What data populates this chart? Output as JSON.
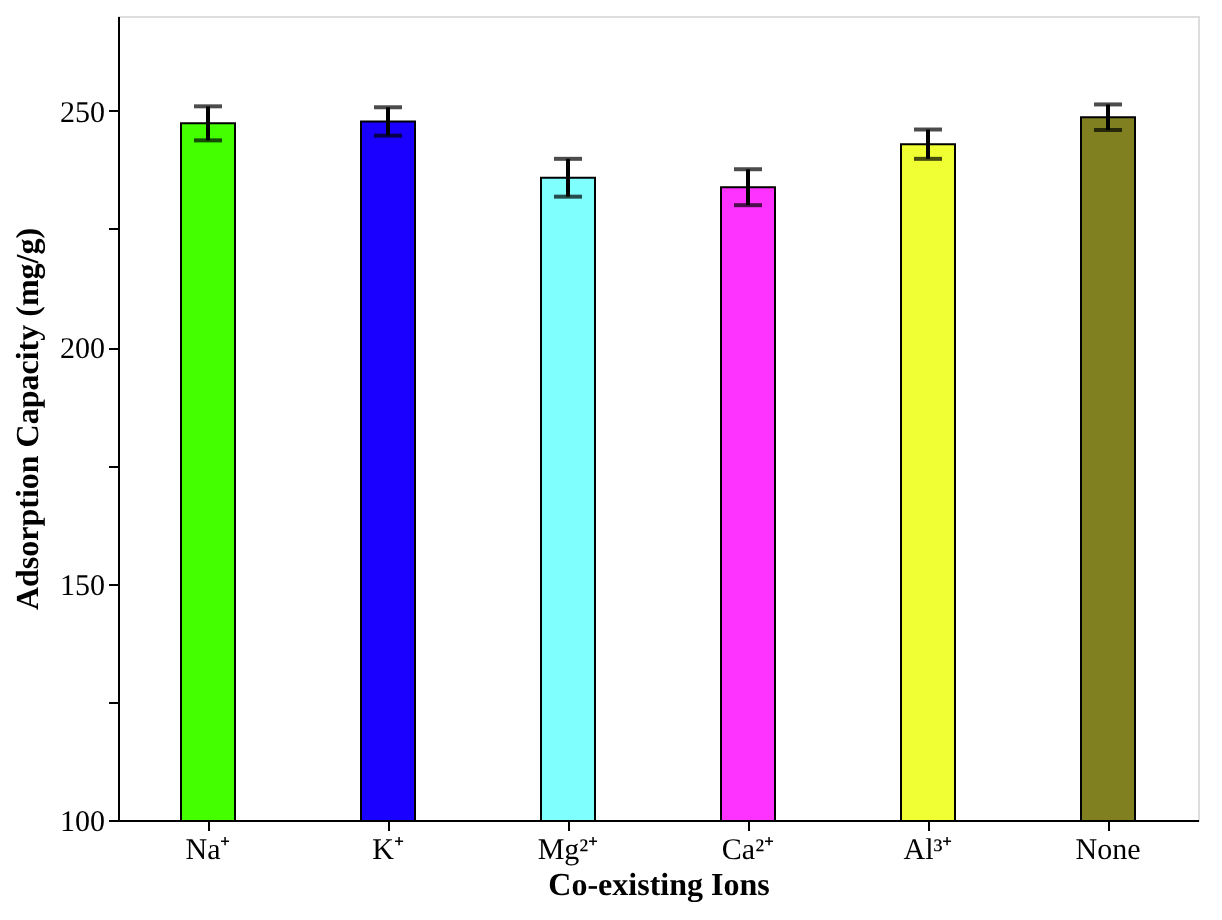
{
  "chart_data": {
    "type": "bar",
    "xlabel": "Co-existing Ions",
    "ylabel": "Adsorption Capacity (mg/g)",
    "categories": [
      "Na⁺",
      "K⁺",
      "Mg²⁺",
      "Ca²⁺",
      "Al³⁺",
      "None"
    ],
    "values": [
      247.3,
      247.7,
      235.8,
      233.8,
      242.9,
      248.6
    ],
    "errors": [
      3.6,
      3.0,
      4.0,
      3.8,
      3.1,
      2.7
    ],
    "colors": [
      "#44ff00",
      "#1a00ff",
      "#80ffff",
      "#ff33ff",
      "#f0ff33",
      "#808020"
    ],
    "ylim": [
      100,
      270
    ],
    "yticks": [
      100,
      {
        "value": 125,
        "label": null
      },
      150,
      {
        "value": 175,
        "label": null
      },
      200,
      {
        "value": 225,
        "label": null
      },
      250
    ],
    "grid": false,
    "legend": false
  }
}
